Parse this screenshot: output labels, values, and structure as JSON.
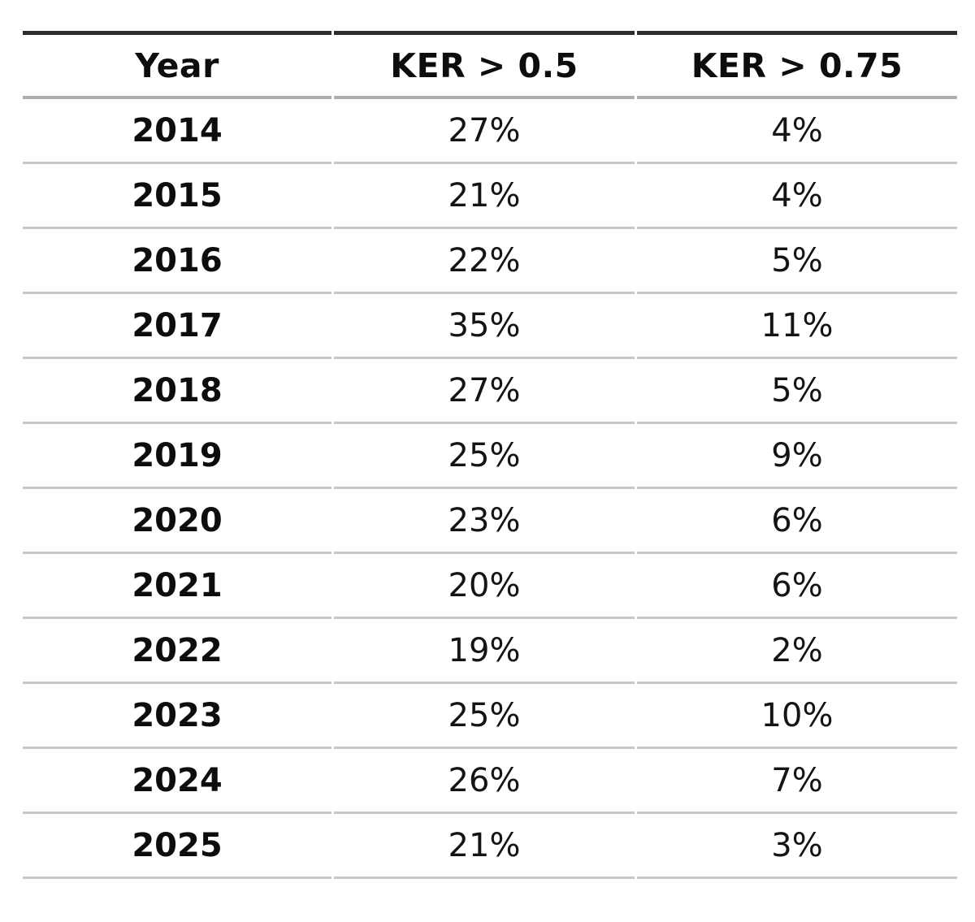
{
  "colors": {
    "background": "#ffffff",
    "text": "#0d0d0d",
    "top_rule": "#2d2d2d",
    "header_rule": "#aeaeae",
    "row_rule": "#c7c7c7"
  },
  "table": {
    "columns": [
      "Year",
      "KER > 0.5",
      "KER > 0.75"
    ]
  },
  "chart_data": {
    "type": "table",
    "title": "",
    "columns": [
      "Year",
      "KER > 0.5",
      "KER > 0.75"
    ],
    "categories": [
      "2014",
      "2015",
      "2016",
      "2017",
      "2018",
      "2019",
      "2020",
      "2021",
      "2022",
      "2023",
      "2024",
      "2025"
    ],
    "series": [
      {
        "name": "KER > 0.5",
        "values": [
          27,
          21,
          22,
          35,
          27,
          25,
          23,
          20,
          19,
          25,
          26,
          21
        ]
      },
      {
        "name": "KER > 0.75",
        "values": [
          4,
          4,
          5,
          11,
          5,
          9,
          6,
          6,
          2,
          10,
          7,
          3
        ]
      }
    ],
    "unit": "%",
    "rows": [
      [
        "2014",
        "27%",
        "4%"
      ],
      [
        "2015",
        "21%",
        "4%"
      ],
      [
        "2016",
        "22%",
        "5%"
      ],
      [
        "2017",
        "35%",
        "11%"
      ],
      [
        "2018",
        "27%",
        "5%"
      ],
      [
        "2019",
        "25%",
        "9%"
      ],
      [
        "2020",
        "23%",
        "6%"
      ],
      [
        "2021",
        "20%",
        "6%"
      ],
      [
        "2022",
        "19%",
        "2%"
      ],
      [
        "2023",
        "25%",
        "10%"
      ],
      [
        "2024",
        "26%",
        "7%"
      ],
      [
        "2025",
        "21%",
        "3%"
      ]
    ]
  }
}
